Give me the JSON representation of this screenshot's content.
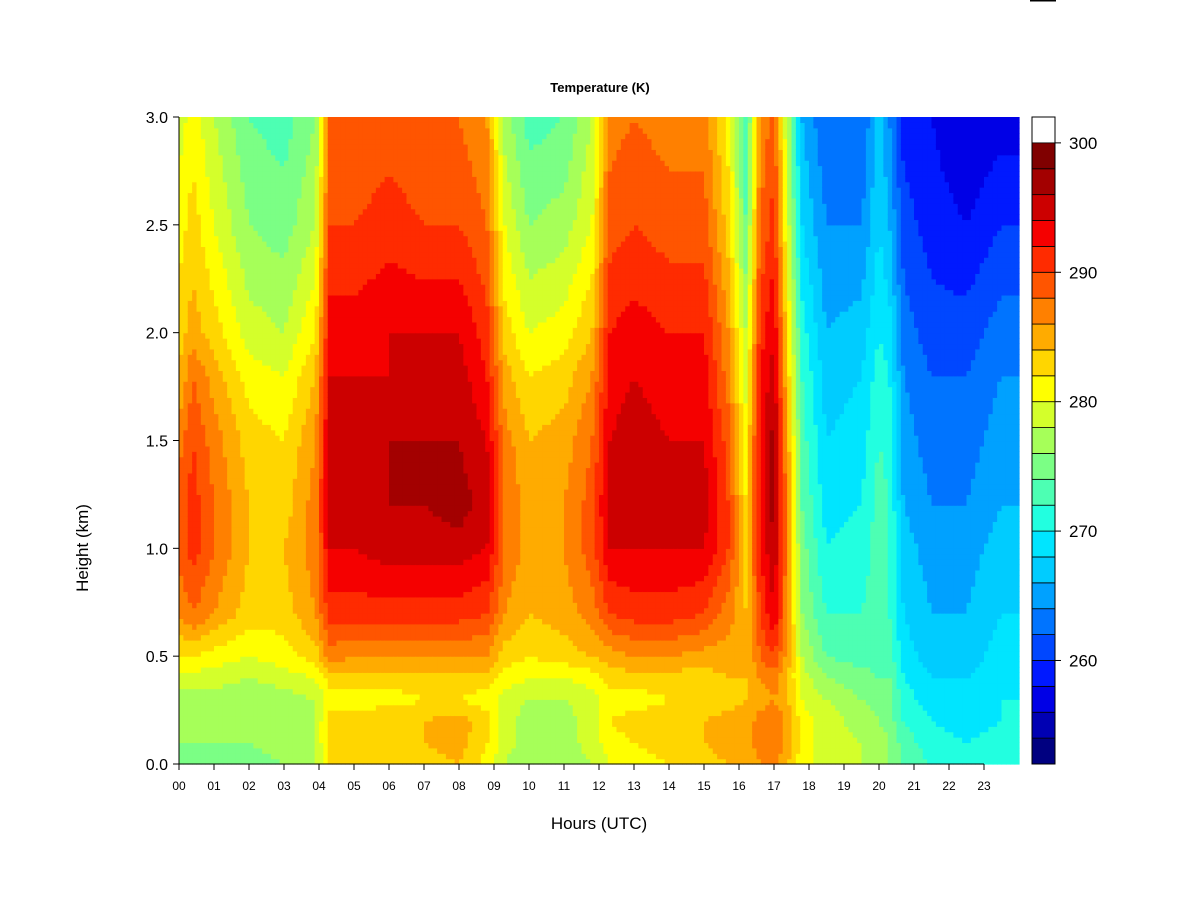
{
  "chart_data": {
    "type": "heatmap",
    "title": "Temperature (K)",
    "xlabel": "Hours (UTC)",
    "ylabel": "Height (km)",
    "x_range": [
      0,
      24
    ],
    "y_range": [
      0,
      3
    ],
    "x_ticks": [
      "00",
      "01",
      "02",
      "03",
      "04",
      "05",
      "06",
      "07",
      "08",
      "09",
      "10",
      "11",
      "12",
      "13",
      "14",
      "15",
      "16",
      "17",
      "18",
      "19",
      "20",
      "21",
      "22",
      "23"
    ],
    "y_ticks": [
      "0.0",
      "0.5",
      "1.0",
      "1.5",
      "2.0",
      "2.5",
      "3.0"
    ],
    "y_tick_values": [
      0,
      0.5,
      1.0,
      1.5,
      2.0,
      2.5,
      3.0
    ],
    "colorbar": {
      "range": [
        252,
        302
      ],
      "step": 2,
      "ticks": [
        "260",
        "270",
        "280",
        "290",
        "300"
      ],
      "tick_values": [
        260,
        270,
        280,
        290,
        300
      ],
      "colors": [
        "#000080",
        "#0000b3",
        "#0000e6",
        "#0019ff",
        "#0047ff",
        "#0074ff",
        "#00a1ff",
        "#00ccff",
        "#00e5ff",
        "#22ffe0",
        "#4dffb3",
        "#7bff85",
        "#a6ff59",
        "#d4ff2b",
        "#ffff00",
        "#ffd600",
        "#ffab00",
        "#ff8000",
        "#ff5500",
        "#ff2b00",
        "#f50000",
        "#cc0000",
        "#a30000",
        "#800000"
      ]
    },
    "temperature_profiles_K": {
      "heights_km": [
        0.0,
        0.1,
        0.2,
        0.3,
        0.4,
        0.5,
        0.7,
        1.0,
        1.2,
        1.5,
        1.8,
        2.0,
        2.5,
        3.0
      ],
      "times_h": [
        0.0,
        0.4,
        1.0,
        2.0,
        3.0,
        3.9,
        4.3,
        5.0,
        6.0,
        7.0,
        8.0,
        8.8,
        9.3,
        10.0,
        11.0,
        11.8,
        12.3,
        13.0,
        14.0,
        15.0,
        15.7,
        16.2,
        16.6,
        17.0,
        17.4,
        17.8,
        18.5,
        19.5,
        20.0,
        20.3,
        20.7,
        21.5,
        22.5,
        23.5,
        24.0
      ],
      "profiles": [
        [
          275,
          276,
          277,
          277,
          279,
          282,
          286,
          289,
          289,
          287,
          284,
          283,
          281,
          279
        ],
        [
          275,
          276,
          277,
          277,
          279,
          282,
          288,
          291,
          291,
          290,
          288,
          285,
          283,
          281
        ],
        [
          275,
          276,
          277,
          277,
          279,
          281,
          286,
          288,
          288,
          287,
          285,
          283,
          280,
          278
        ],
        [
          275,
          276,
          276,
          276,
          278,
          280,
          283,
          284,
          284,
          283,
          281,
          279,
          276,
          274
        ],
        [
          276,
          277,
          277,
          277,
          279,
          281,
          283,
          284,
          283,
          282,
          280,
          278,
          275,
          273
        ],
        [
          278,
          278,
          278,
          278,
          280,
          283,
          286,
          287,
          287,
          286,
          284,
          282,
          278,
          276
        ],
        [
          282,
          283,
          283,
          281,
          283,
          287,
          291,
          294,
          295,
          295,
          294,
          293,
          290,
          288
        ],
        [
          282,
          283,
          283,
          281,
          283,
          286,
          291,
          294,
          295,
          295,
          294,
          293,
          290,
          288
        ],
        [
          282,
          283,
          284,
          281,
          283,
          286,
          291,
          295,
          296,
          296,
          294,
          294,
          291,
          289
        ],
        [
          283,
          284,
          284,
          282,
          283,
          286,
          291,
          295,
          296,
          296,
          294,
          294,
          290,
          288
        ],
        [
          284,
          285,
          285,
          282,
          283,
          286,
          291,
          295,
          297,
          296,
          295,
          294,
          290,
          288
        ],
        [
          281,
          282,
          283,
          281,
          283,
          286,
          290,
          294,
          295,
          294,
          292,
          291,
          288,
          286
        ],
        [
          278,
          279,
          279,
          279,
          281,
          283,
          286,
          288,
          288,
          287,
          285,
          283,
          280,
          277
        ],
        [
          276,
          277,
          277,
          278,
          280,
          282,
          284,
          285,
          285,
          284,
          282,
          280,
          276,
          273
        ],
        [
          276,
          277,
          277,
          278,
          280,
          283,
          285,
          286,
          286,
          285,
          283,
          281,
          277,
          274
        ],
        [
          278,
          279,
          279,
          279,
          281,
          284,
          287,
          289,
          289,
          288,
          286,
          284,
          280,
          278
        ],
        [
          280,
          281,
          282,
          281,
          283,
          285,
          290,
          294,
          295,
          294,
          293,
          292,
          289,
          287
        ],
        [
          281,
          282,
          283,
          281,
          283,
          286,
          291,
          294,
          296,
          295,
          294,
          293,
          290,
          288
        ],
        [
          282,
          283,
          283,
          282,
          283,
          286,
          291,
          294,
          295,
          294,
          293,
          292,
          289,
          287
        ],
        [
          283,
          284,
          284,
          282,
          283,
          285,
          290,
          294,
          295,
          294,
          293,
          292,
          289,
          287
        ],
        [
          284,
          285,
          285,
          283,
          284,
          285,
          287,
          290,
          290,
          289,
          287,
          286,
          283,
          281
        ],
        [
          284,
          285,
          285,
          284,
          284,
          284,
          284,
          283,
          282,
          281,
          279,
          278,
          274,
          272
        ],
        [
          286,
          287,
          287,
          285,
          286,
          288,
          290,
          292,
          293,
          293,
          292,
          291,
          288,
          286
        ],
        [
          287,
          288,
          288,
          286,
          287,
          290,
          294,
          296,
          297,
          297,
          295,
          294,
          291,
          289
        ],
        [
          284,
          285,
          285,
          284,
          284,
          285,
          286,
          286,
          286,
          285,
          283,
          282,
          279,
          277
        ],
        [
          281,
          281,
          281,
          280,
          279,
          278,
          276,
          275,
          274,
          273,
          272,
          271,
          268,
          266
        ],
        [
          279,
          279,
          279,
          278,
          276,
          274,
          272,
          270,
          269,
          268,
          267,
          266,
          264,
          262
        ],
        [
          278,
          278,
          277,
          276,
          275,
          273,
          272,
          271,
          270,
          269,
          268,
          267,
          264,
          262
        ],
        [
          277,
          277,
          276,
          275,
          274,
          273,
          273,
          273,
          273,
          272,
          271,
          270,
          268,
          267
        ],
        [
          276,
          276,
          275,
          275,
          274,
          273,
          272,
          272,
          272,
          271,
          270,
          269,
          266,
          264
        ],
        [
          273,
          273,
          272,
          271,
          270,
          269,
          268,
          267,
          266,
          265,
          264,
          263,
          261,
          259
        ],
        [
          272,
          271,
          270,
          269,
          268,
          267,
          266,
          265,
          264,
          263,
          262,
          261,
          259,
          258
        ],
        [
          271,
          270,
          269,
          268,
          268,
          267,
          266,
          265,
          264,
          263,
          262,
          261,
          258,
          256
        ],
        [
          272,
          271,
          270,
          270,
          269,
          269,
          268,
          267,
          266,
          265,
          264,
          263,
          260,
          257
        ],
        [
          272,
          271,
          270,
          270,
          269,
          269,
          268,
          267,
          266,
          265,
          264,
          263,
          260,
          257
        ]
      ]
    },
    "grid": false,
    "legend": "colorbar-right"
  }
}
